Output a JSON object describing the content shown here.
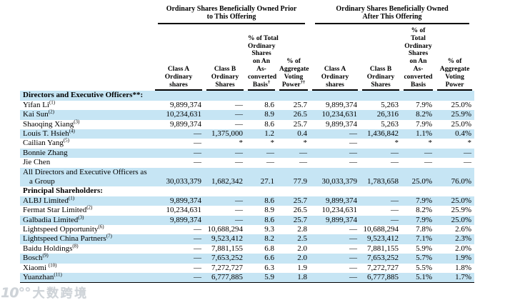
{
  "watermark": {
    "logo": "10°°",
    "text": "大数跨境"
  },
  "colors": {
    "row_shade": "#c6e5f4",
    "rule": "#000000"
  },
  "table": {
    "groups": [
      {
        "lines": [
          "Ordinary Shares Beneficially Owned Prior",
          "to This Offering"
        ]
      },
      {
        "lines": [
          "Ordinary Shares Beneficially Owned",
          "After This Offering"
        ]
      }
    ],
    "columns": [
      {
        "lines": [
          "Class A",
          "Ordinary",
          "shares"
        ],
        "sup": ""
      },
      {
        "lines": [
          "Class B",
          "Ordinary",
          "Shares"
        ],
        "sup": ""
      },
      {
        "lines": [
          "% of Total",
          "Ordinary",
          "Shares",
          "on An",
          "As-",
          "converted",
          "Basis"
        ],
        "sup": "†"
      },
      {
        "lines": [
          "% of",
          "Aggregate",
          "Voting",
          "Power"
        ],
        "sup": "††"
      },
      {
        "lines": [
          "Class A",
          "Ordinary",
          "shares"
        ],
        "sup": ""
      },
      {
        "lines": [
          "Class B",
          "Ordinary",
          "Shares"
        ],
        "sup": ""
      },
      {
        "lines": [
          "% of",
          "Total",
          "Ordinary",
          "Shares",
          "on An",
          "As-",
          "converted",
          "Basis"
        ],
        "sup": ""
      },
      {
        "lines": [
          "% of",
          "Aggregate",
          "Voting",
          "Power"
        ],
        "sup": ""
      }
    ],
    "rows": [
      {
        "type": "section",
        "shaded": true,
        "label": "Directors and Executive Officers**:",
        "sup": "",
        "values": [
          "",
          "",
          "",
          "",
          "",
          "",
          "",
          ""
        ]
      },
      {
        "type": "data",
        "shaded": false,
        "label": "Yifan Li",
        "sup": "(1)",
        "values": [
          "9,899,374",
          "—",
          "8.6",
          "25.7",
          "9,899,374",
          "5,263",
          "7.9%",
          "25.0%"
        ]
      },
      {
        "type": "data",
        "shaded": true,
        "label": "Kai Sun",
        "sup": "(2)",
        "values": [
          "10,234,631",
          "—",
          "8.9",
          "26.5",
          "10,234,631",
          "26,316",
          "8.2%",
          "25.9%"
        ]
      },
      {
        "type": "data",
        "shaded": false,
        "label": "Shaoqing Xiang",
        "sup": "(3)",
        "values": [
          "9,899,374",
          "—",
          "8.6",
          "25.7",
          "9,899,374",
          "5,263",
          "7.9%",
          "25.0%"
        ]
      },
      {
        "type": "data",
        "shaded": true,
        "label": "Louis T. Hsieh",
        "sup": "(4)",
        "values": [
          "—",
          "1,375,000",
          "1.2",
          "0.4",
          "—",
          "1,436,842",
          "1.1%",
          "0.4%"
        ]
      },
      {
        "type": "data",
        "shaded": false,
        "label": "Cailian Yang",
        "sup": "(5)",
        "values": [
          "—",
          "*",
          "*",
          "*",
          "—",
          "*",
          "*",
          "*"
        ]
      },
      {
        "type": "data",
        "shaded": true,
        "label": "Bonnie Zhang",
        "sup": "",
        "values": [
          "—",
          "—",
          "—",
          "—",
          "—",
          "—",
          "—",
          "—"
        ]
      },
      {
        "type": "data",
        "shaded": false,
        "label": "Jie Chen",
        "sup": "",
        "values": [
          "—",
          "—",
          "—",
          "—",
          "—",
          "—",
          "—",
          "—"
        ]
      },
      {
        "type": "data2",
        "shaded": true,
        "label": "All Directors and Executive Officers as",
        "label2": "a Group",
        "sup": "",
        "values": [
          "30,033,379",
          "1,682,342",
          "27.1",
          "77.9",
          "30,033,379",
          "1,783,658",
          "25.0%",
          "76.0%"
        ]
      },
      {
        "type": "section",
        "shaded": false,
        "label": "Principal Shareholders:",
        "sup": "",
        "values": [
          "",
          "",
          "",
          "",
          "",
          "",
          "",
          ""
        ]
      },
      {
        "type": "data",
        "shaded": true,
        "label": "ALBJ Limited",
        "sup": "(1)",
        "values": [
          "9,899,374",
          "—",
          "8.6",
          "25.7",
          "9,899,374",
          "—",
          "7.9%",
          "25.0%"
        ]
      },
      {
        "type": "data",
        "shaded": false,
        "label": "Fermat Star Limited",
        "sup": "(2)",
        "values": [
          "10,234,631",
          "—",
          "8.9",
          "26.5",
          "10,234,631",
          "—",
          "8.2%",
          "25.9%"
        ]
      },
      {
        "type": "data",
        "shaded": true,
        "label": "Galbadia Limited",
        "sup": "(3)",
        "values": [
          "9,899,374",
          "—",
          "8.6",
          "25.7",
          "9,899,374",
          "—",
          "7.9%",
          "25.0%"
        ]
      },
      {
        "type": "data",
        "shaded": false,
        "label": "Lightspeed Opportunity",
        "sup": "(6)",
        "values": [
          "—",
          "10,688,294",
          "9.3",
          "2.8",
          "—",
          "10,688,294",
          "7.8%",
          "2.6%"
        ]
      },
      {
        "type": "data",
        "shaded": true,
        "label": "Lightspeed China Partners",
        "sup": "(7)",
        "values": [
          "—",
          "9,523,412",
          "8.2",
          "2.5",
          "—",
          "9,523,412",
          "7.1%",
          "2.3%"
        ]
      },
      {
        "type": "data",
        "shaded": false,
        "label": "Baidu Holdings",
        "sup": "(8)",
        "values": [
          "—",
          "7,881,155",
          "6.8",
          "2.0",
          "—",
          "7,881,155",
          "5.9%",
          "2.0%"
        ]
      },
      {
        "type": "data",
        "shaded": true,
        "label": "Bosch",
        "sup": "(9)",
        "values": [
          "—",
          "7,653,252",
          "6.6",
          "2.0",
          "—",
          "7,653,252",
          "5.7%",
          "1.9%"
        ]
      },
      {
        "type": "data",
        "shaded": false,
        "label": "Xiaomi ",
        "sup": "(10)",
        "values": [
          "—",
          "7,272,727",
          "6.3",
          "1.9",
          "—",
          "7,272,727",
          "5.5%",
          "1.8%"
        ]
      },
      {
        "type": "data",
        "shaded": true,
        "label": "Yuanzhan",
        "sup": "(11)",
        "values": [
          "—",
          "6,777,885",
          "5.9",
          "1.8",
          "—",
          "6,777,885",
          "5.1%",
          "1.7%"
        ]
      }
    ]
  }
}
